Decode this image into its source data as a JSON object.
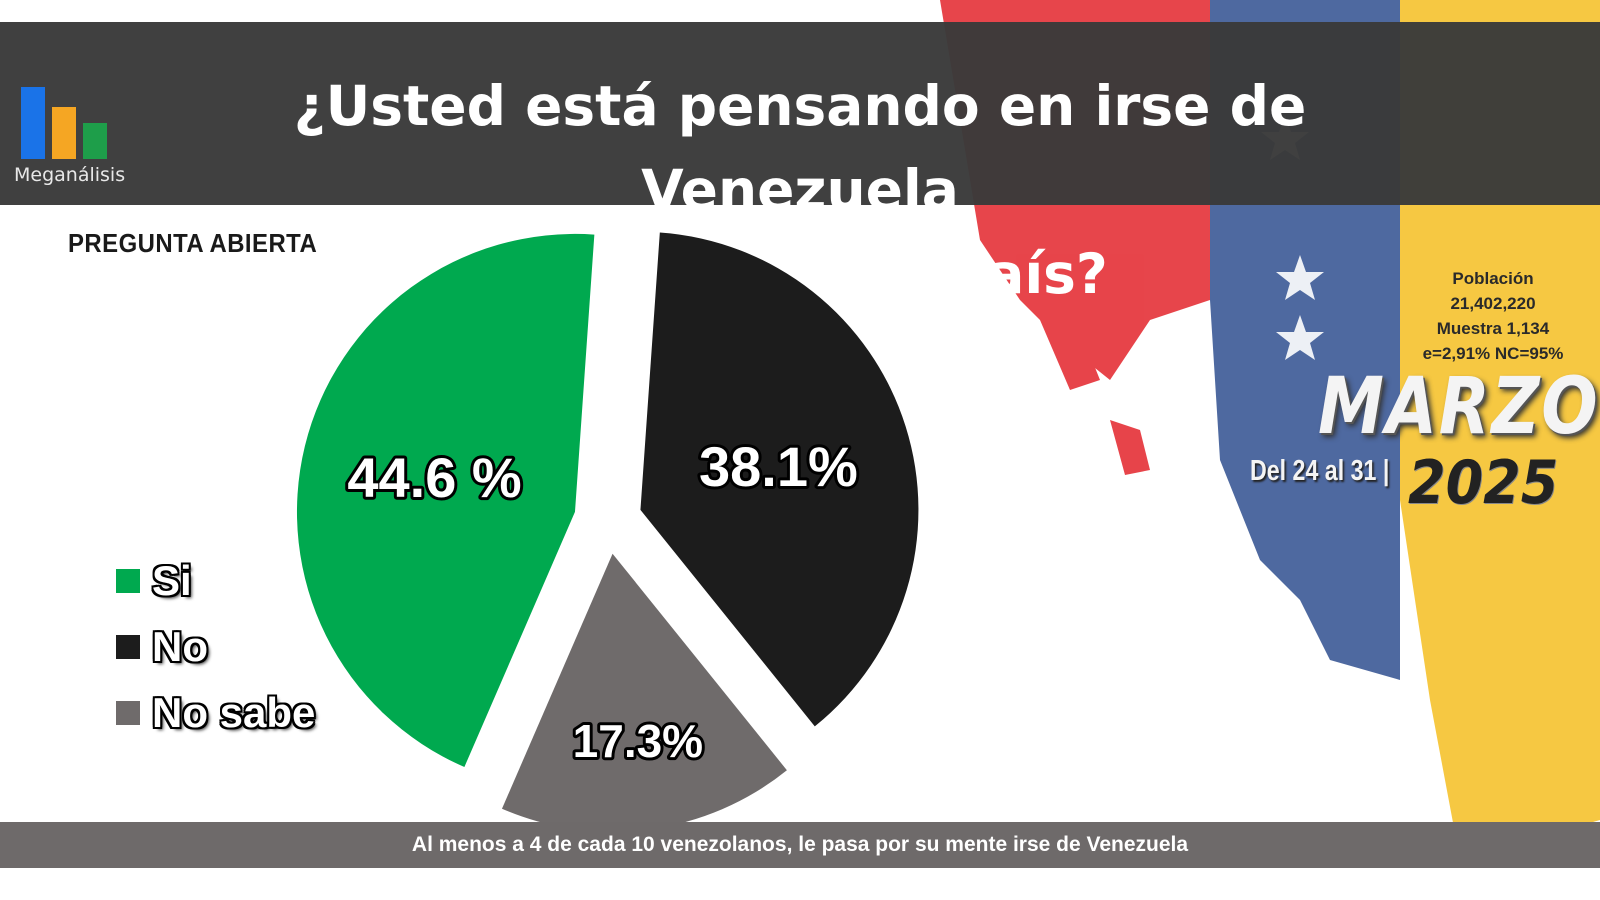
{
  "brand": {
    "name": "Meganálisis",
    "colors": [
      "#1a73e8",
      "#f5a623",
      "#1e9e4a"
    ]
  },
  "header": {
    "title_line1": "¿Usted está pensando en irse de Venezuela",
    "title_line2": "a vivir en otro país?"
  },
  "subtitle": "PREGUNTA ABIERTA",
  "sample_info": {
    "line1": "Población",
    "line2": "21,402,220",
    "line3": "Muestra 1,134",
    "line4": "e=2,91%  NC=95%"
  },
  "period": {
    "month": "MARZO",
    "range": "Del 24 al 31 |",
    "year": "2025"
  },
  "footer": "Al menos a 4 de cada 10 venezolanos, le pasa por su mente irse de Venezuela",
  "chart_data": {
    "type": "pie",
    "title": "¿Usted está pensando en irse de Venezuela a vivir en otro país?",
    "labels": [
      "Si",
      "No",
      "No sabe"
    ],
    "values": [
      44.6,
      38.1,
      17.3
    ],
    "value_labels": [
      "44.6 %",
      "38.1%",
      "17.3%"
    ],
    "colors": [
      "#00a94f",
      "#1c1c1c",
      "#6f6b6b"
    ],
    "legend_position": "left",
    "exploded": true
  }
}
